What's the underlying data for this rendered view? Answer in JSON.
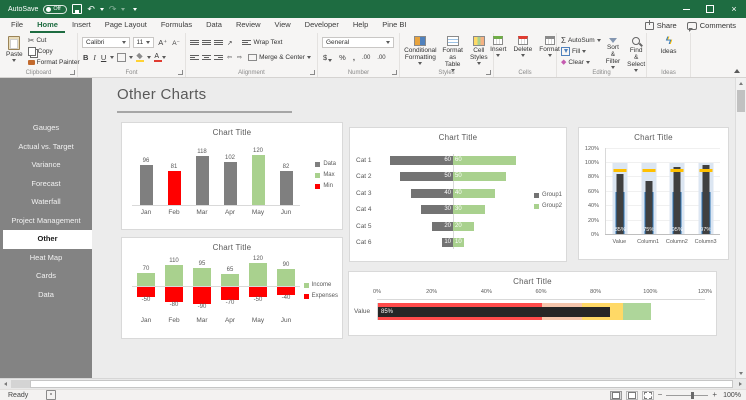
{
  "colors": {
    "titlebar_green": "#1e6c41",
    "accent_green": "#217346",
    "sidebar_gray": "#838383",
    "series_gray": "#7f7f7f",
    "series_green": "#a9d18e",
    "series_red": "#ff0000",
    "bullet_blue": "#2e75b6",
    "bullet_lightblue": "#dce6f2",
    "bullet_dark": "#404040",
    "target_yellow": "#ffc000"
  },
  "titlebar": {
    "autosave": "AutoSave",
    "autosave_state": "Off",
    "icons": [
      "save-icon",
      "undo-icon",
      "redo-icon",
      "quick-access-more-icon"
    ],
    "window_buttons": [
      "minimize",
      "restore",
      "close"
    ]
  },
  "tabs": {
    "items": [
      "File",
      "Home",
      "Insert",
      "Page Layout",
      "Formulas",
      "Data",
      "Review",
      "View",
      "Developer",
      "Help",
      "Pine BI"
    ],
    "active": "Home",
    "share": "Share",
    "comments": "Comments"
  },
  "ribbon": {
    "groups": {
      "clipboard": "Clipboard",
      "font": "Font",
      "alignment": "Alignment",
      "number": "Number",
      "styles": "Styles",
      "cells": "Cells",
      "editing": "Editing",
      "ideas": "Ideas"
    },
    "clipboard": {
      "paste": "Paste",
      "cut": "Cut",
      "copy": "Copy",
      "format_painter": "Format Painter"
    },
    "font": {
      "name": "Calibri",
      "size": "11",
      "bold": "B",
      "italic": "I",
      "underline": "U"
    },
    "alignment": {
      "wrap": "Wrap Text",
      "merge": "Merge & Center"
    },
    "number": {
      "format": "General",
      "currency": "$",
      "percent": "%",
      "comma": ",",
      "inc_dec": ".00",
      "dec_dec": ".00"
    },
    "styles": {
      "conditional": "Conditional Formatting",
      "table": "Format as Table",
      "cell": "Cell Styles"
    },
    "cells": {
      "insert": "Insert",
      "delete": "Delete",
      "format": "Format"
    },
    "editing": {
      "autosum": "AutoSum",
      "fill": "Fill",
      "clear": "Clear",
      "sort": "Sort & Filter",
      "find": "Find & Select"
    },
    "ideas_label": "Ideas"
  },
  "sidebar": {
    "items": [
      "Gauges",
      "Actual vs. Target",
      "Variance",
      "Forecast",
      "Waterfall",
      "Project Management",
      "Other",
      "Heat Map",
      "Cards",
      "Data"
    ],
    "active": "Other"
  },
  "main": {
    "title": "Other Charts"
  },
  "chart_data": [
    {
      "type": "bar",
      "variant": "column-minmax",
      "title": "Chart Title",
      "categories": [
        "Jan",
        "Feb",
        "Mar",
        "Apr",
        "May",
        "Jun"
      ],
      "values": [
        96,
        81,
        118,
        102,
        120,
        82
      ],
      "bar_roles": [
        "data",
        "min",
        "data",
        "data",
        "max",
        "data"
      ],
      "role_colors": {
        "data": "#7f7f7f",
        "max": "#a9d18e",
        "min": "#ff0000"
      },
      "legend": [
        {
          "label": "Data",
          "color": "#7f7f7f"
        },
        {
          "label": "Max",
          "color": "#a9d18e"
        },
        {
          "label": "Min",
          "color": "#ff0000"
        }
      ],
      "ylim": [
        0,
        130
      ],
      "legend_position": "right",
      "grid": false
    },
    {
      "type": "bar",
      "variant": "tornado",
      "title": "Chart Title",
      "categories": [
        "Cat 1",
        "Cat 2",
        "Cat 3",
        "Cat 4",
        "Cat 5",
        "Cat 6"
      ],
      "series": [
        {
          "name": "Group1",
          "color": "#737373",
          "values": [
            60,
            50,
            40,
            30,
            20,
            10
          ]
        },
        {
          "name": "Group2",
          "color": "#a9d18e",
          "values": [
            60,
            50,
            40,
            30,
            20,
            10
          ]
        }
      ],
      "xlim": [
        0,
        70
      ],
      "legend_position": "right",
      "grid": false
    },
    {
      "type": "bar",
      "variant": "bullet-columns",
      "title": "Chart Title",
      "categories": [
        "Value",
        "Column1",
        "Column2",
        "Column3"
      ],
      "values_pct": [
        85,
        75,
        95,
        97
      ],
      "labels": [
        "85%",
        "75%",
        "95%",
        "97%"
      ],
      "target_pct": 90,
      "base_pct": 60,
      "range_pct": 100,
      "yticks": [
        "0%",
        "20%",
        "40%",
        "60%",
        "80%",
        "100%",
        "120%"
      ],
      "ylim": [
        0,
        120
      ],
      "colors": {
        "range": "#dce6f2",
        "base": "#2e75b6",
        "value": "#404040",
        "target": "#ffc000"
      }
    },
    {
      "type": "bar",
      "variant": "column-posneg",
      "title": "Chart Title",
      "categories": [
        "Jan",
        "Feb",
        "Mar",
        "Apr",
        "May",
        "Jun"
      ],
      "series": [
        {
          "name": "Income",
          "color": "#a9d18e",
          "values": [
            70,
            110,
            95,
            65,
            120,
            90
          ]
        },
        {
          "name": "Expenses",
          "color": "#ff0000",
          "values": [
            -50,
            -80,
            -90,
            -70,
            -50,
            -40
          ]
        }
      ],
      "ylim": [
        -120,
        140
      ],
      "legend_position": "right",
      "grid": false
    },
    {
      "type": "bar",
      "variant": "bullet-row",
      "title": "Chart Title",
      "categories": [
        "Value"
      ],
      "value_pct": 85,
      "label": "85%",
      "bands": [
        {
          "to": 60,
          "color": "#ff4b4b"
        },
        {
          "to": 75,
          "color": "#f6c6ac"
        },
        {
          "to": 90,
          "color": "#ffd966"
        },
        {
          "to": 100,
          "color": "#aed69a"
        }
      ],
      "bar_color": "#262626",
      "xticks": [
        "0%",
        "20%",
        "40%",
        "60%",
        "80%",
        "100%",
        "120%"
      ],
      "xlim": [
        0,
        120
      ]
    }
  ],
  "statusbar": {
    "ready": "Ready",
    "zoom_level": "100%",
    "view_icons": [
      "normal-view",
      "page-layout-view",
      "page-break-view"
    ]
  }
}
